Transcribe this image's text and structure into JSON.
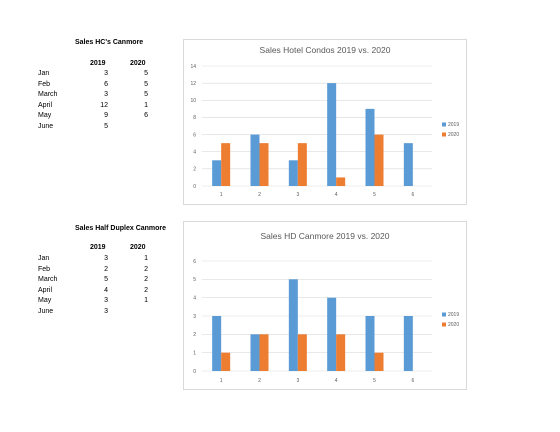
{
  "tables": [
    {
      "title": "Sales HC's Canmore",
      "col_a": "2019",
      "col_b": "2020",
      "rows": [
        {
          "month": "Jan",
          "a": "3",
          "b": "5"
        },
        {
          "month": "Feb",
          "a": "6",
          "b": "5"
        },
        {
          "month": "March",
          "a": "3",
          "b": "5"
        },
        {
          "month": "April",
          "a": "12",
          "b": "1"
        },
        {
          "month": "May",
          "a": "9",
          "b": "6"
        },
        {
          "month": "June",
          "a": "5",
          "b": ""
        }
      ]
    },
    {
      "title": "Sales Half Duplex Canmore",
      "col_a": "2019",
      "col_b": "2020",
      "rows": [
        {
          "month": "Jan",
          "a": "3",
          "b": "1"
        },
        {
          "month": "Feb",
          "a": "2",
          "b": "2"
        },
        {
          "month": "March",
          "a": "5",
          "b": "2"
        },
        {
          "month": "April",
          "a": "4",
          "b": "2"
        },
        {
          "month": "May",
          "a": "3",
          "b": "1"
        },
        {
          "month": "June",
          "a": "3",
          "b": ""
        }
      ]
    }
  ],
  "colors": {
    "series_2019": "#5b9bd5",
    "series_2020": "#ed7d31",
    "grid": "#d9d9d9"
  },
  "chart_data": [
    {
      "type": "bar",
      "title": "Sales Hotel Condos 2019 vs. 2020",
      "categories": [
        "1",
        "2",
        "3",
        "4",
        "5",
        "6"
      ],
      "series": [
        {
          "name": "2019",
          "values": [
            3,
            6,
            3,
            12,
            9,
            5
          ]
        },
        {
          "name": "2020",
          "values": [
            5,
            5,
            5,
            1,
            6,
            null
          ]
        }
      ],
      "yticks": [
        0,
        2,
        4,
        6,
        8,
        10,
        12,
        14
      ],
      "ylim": [
        0,
        14
      ],
      "grid": true,
      "legend": "right"
    },
    {
      "type": "bar",
      "title": "Sales HD Canmore 2019 vs. 2020",
      "categories": [
        "1",
        "2",
        "3",
        "4",
        "5",
        "6"
      ],
      "series": [
        {
          "name": "2019",
          "values": [
            3,
            2,
            5,
            4,
            3,
            3
          ]
        },
        {
          "name": "2020",
          "values": [
            1,
            2,
            2,
            2,
            1,
            null
          ]
        }
      ],
      "yticks": [
        0,
        1,
        2,
        3,
        4,
        5,
        6
      ],
      "ylim": [
        0,
        6
      ],
      "grid": true,
      "legend": "right"
    }
  ]
}
